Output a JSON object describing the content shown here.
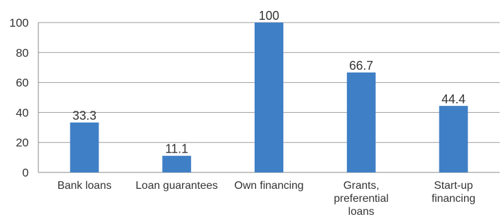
{
  "chart_data": {
    "type": "bar",
    "title": "",
    "xlabel": "",
    "ylabel": "",
    "categories": [
      [
        "Bank loans"
      ],
      [
        "Loan guarantees"
      ],
      [
        "Own financing"
      ],
      [
        "Grants,",
        "preferential",
        "loans"
      ],
      [
        "Start-up",
        "financing"
      ]
    ],
    "values": [
      33.3,
      11.1,
      100,
      66.7,
      44.4
    ],
    "data_labels": [
      "33.3",
      "11.1",
      "100",
      "66.7",
      "44.4"
    ],
    "ylim": [
      0,
      100
    ],
    "yticks": [
      0,
      20,
      40,
      60,
      80,
      100
    ],
    "grid": true,
    "legend": "none",
    "colors": {
      "bar": "#3F7FC6",
      "grid": "#999999",
      "axis": "#888888",
      "text": "#333333"
    }
  }
}
